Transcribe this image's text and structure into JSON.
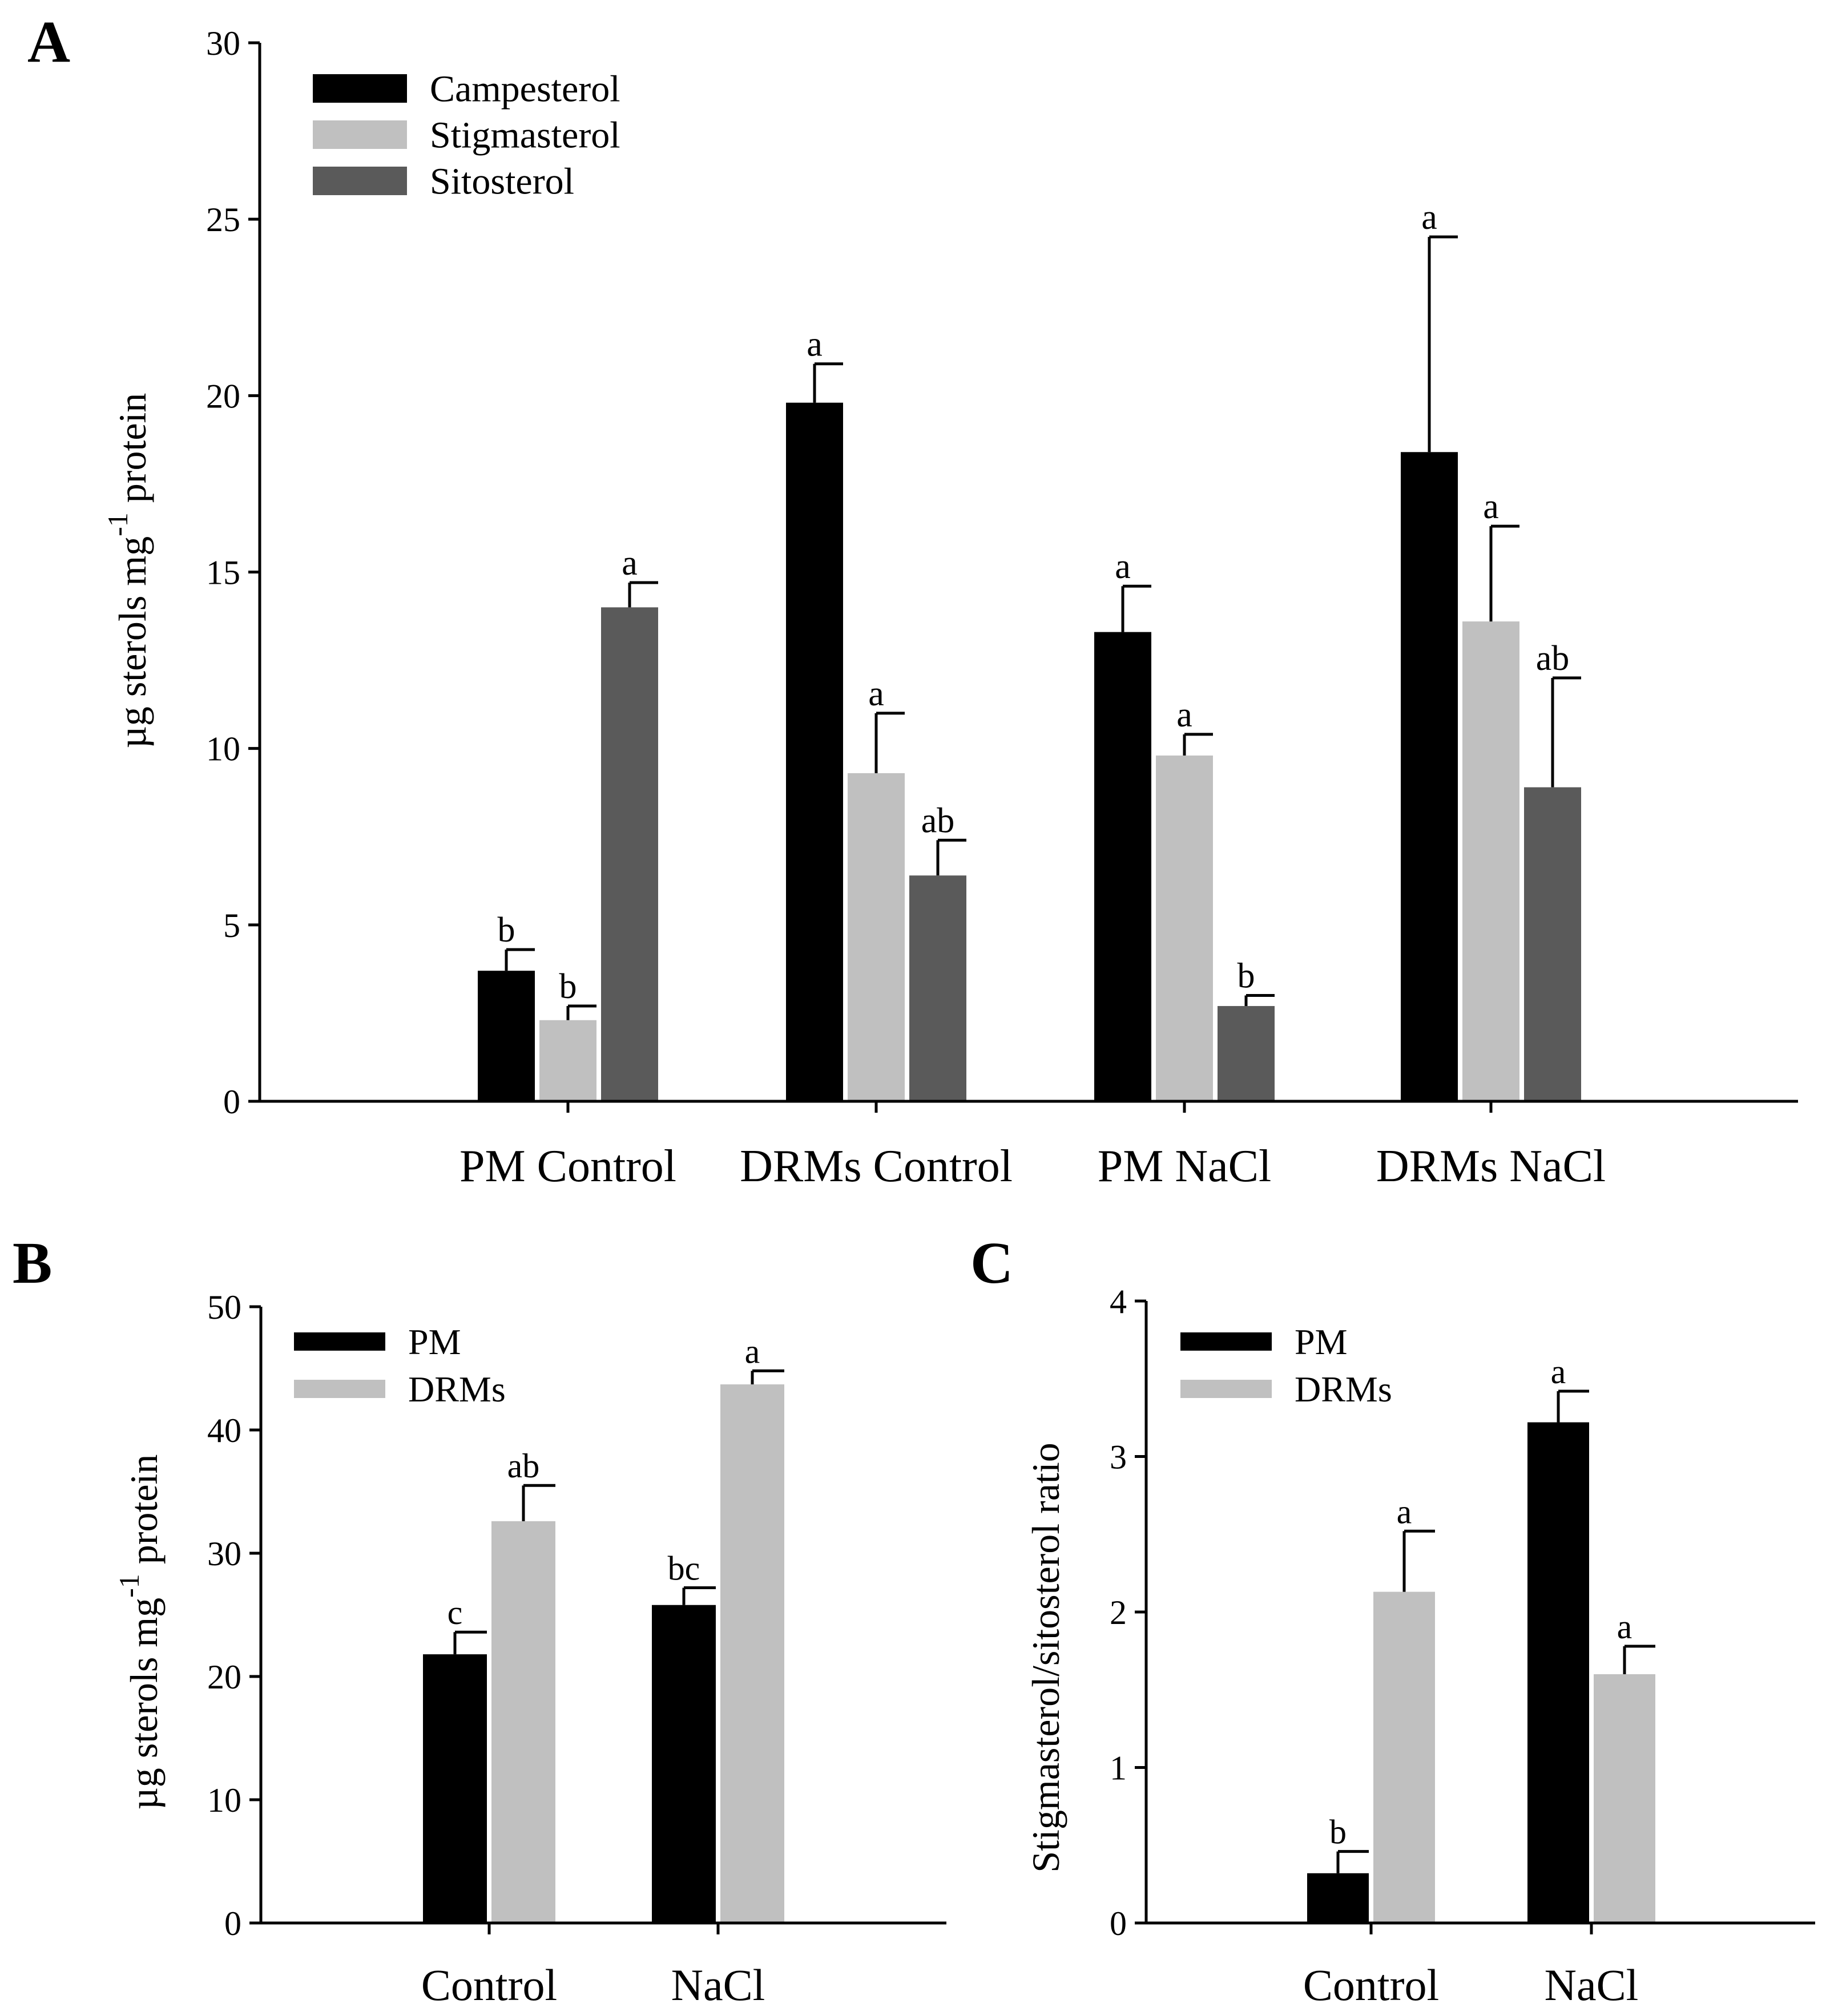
{
  "colors": {
    "campesterol": "#000000",
    "stigmasterol": "#c0c0c0",
    "sitosterol": "#5a5a5a",
    "pm": "#000000",
    "drms": "#c0c0c0",
    "axis": "#000000"
  },
  "chart_data": [
    {
      "panel": "A",
      "type": "bar",
      "ylabel_main": "µg sterols  mg",
      "ylabel_sup": "-1",
      "ylabel_end": " protein",
      "ylim": [
        0,
        30
      ],
      "yticks": [
        "0",
        "5",
        "10",
        "15",
        "20",
        "25",
        "30"
      ],
      "categories": [
        "PM Control",
        "DRMs Control",
        "PM NaCl",
        "DRMs NaCl"
      ],
      "legend_position": "top-left",
      "series": [
        {
          "name": "Campesterol",
          "color": "campesterol",
          "values": [
            3.7,
            19.8,
            13.3,
            18.4
          ],
          "errors": [
            0.6,
            1.1,
            1.3,
            6.1
          ],
          "labels": [
            "b",
            "a",
            "a",
            ""
          ]
        },
        {
          "name": "Stigmasterol",
          "color": "stigmasterol",
          "values": [
            2.3,
            9.3,
            9.8,
            13.6
          ],
          "errors": [
            0.4,
            1.7,
            0.6,
            2.7
          ],
          "labels": [
            "b",
            "a",
            "a",
            "a"
          ]
        },
        {
          "name": "Sitosterol",
          "color": "sitosterol",
          "values": [
            14.0,
            6.4,
            2.7,
            8.9
          ],
          "errors": [
            0.7,
            1.0,
            0.3,
            3.1
          ],
          "labels": [
            "a",
            "ab",
            "b",
            "ab"
          ]
        }
      ],
      "top_label": {
        "text": "a",
        "series": 0,
        "category": 3
      }
    },
    {
      "panel": "B",
      "type": "bar",
      "ylabel_main": "µg sterols  mg",
      "ylabel_sup": "-1",
      "ylabel_end": " protein",
      "ylim": [
        0,
        50
      ],
      "yticks": [
        "0",
        "10",
        "20",
        "30",
        "40",
        "50"
      ],
      "categories": [
        "Control",
        "NaCl"
      ],
      "legend_position": "top-left",
      "series": [
        {
          "name": "PM",
          "color": "pm",
          "values": [
            21.8,
            25.8
          ],
          "errors": [
            1.8,
            1.4
          ],
          "labels": [
            "c",
            "bc"
          ]
        },
        {
          "name": "DRMs",
          "color": "drms",
          "values": [
            32.6,
            43.7
          ],
          "errors": [
            2.9,
            1.1
          ],
          "labels": [
            "ab",
            "a"
          ]
        }
      ]
    },
    {
      "panel": "C",
      "type": "bar",
      "ylabel_main": "Stigmasterol/sitosterol ratio",
      "ylabel_sup": "",
      "ylabel_end": "",
      "ylim": [
        0,
        4
      ],
      "yticks": [
        "0",
        "1",
        "2",
        "3",
        "4"
      ],
      "categories": [
        "Control",
        "NaCl"
      ],
      "legend_position": "top-left",
      "series": [
        {
          "name": "PM",
          "color": "pm",
          "values": [
            0.32,
            3.22
          ],
          "errors": [
            0.14,
            0.2
          ],
          "labels": [
            "b",
            "a"
          ]
        },
        {
          "name": "DRMs",
          "color": "drms",
          "values": [
            2.13,
            1.6
          ],
          "errors": [
            0.39,
            0.18
          ],
          "labels": [
            "a",
            "a"
          ]
        }
      ]
    }
  ]
}
